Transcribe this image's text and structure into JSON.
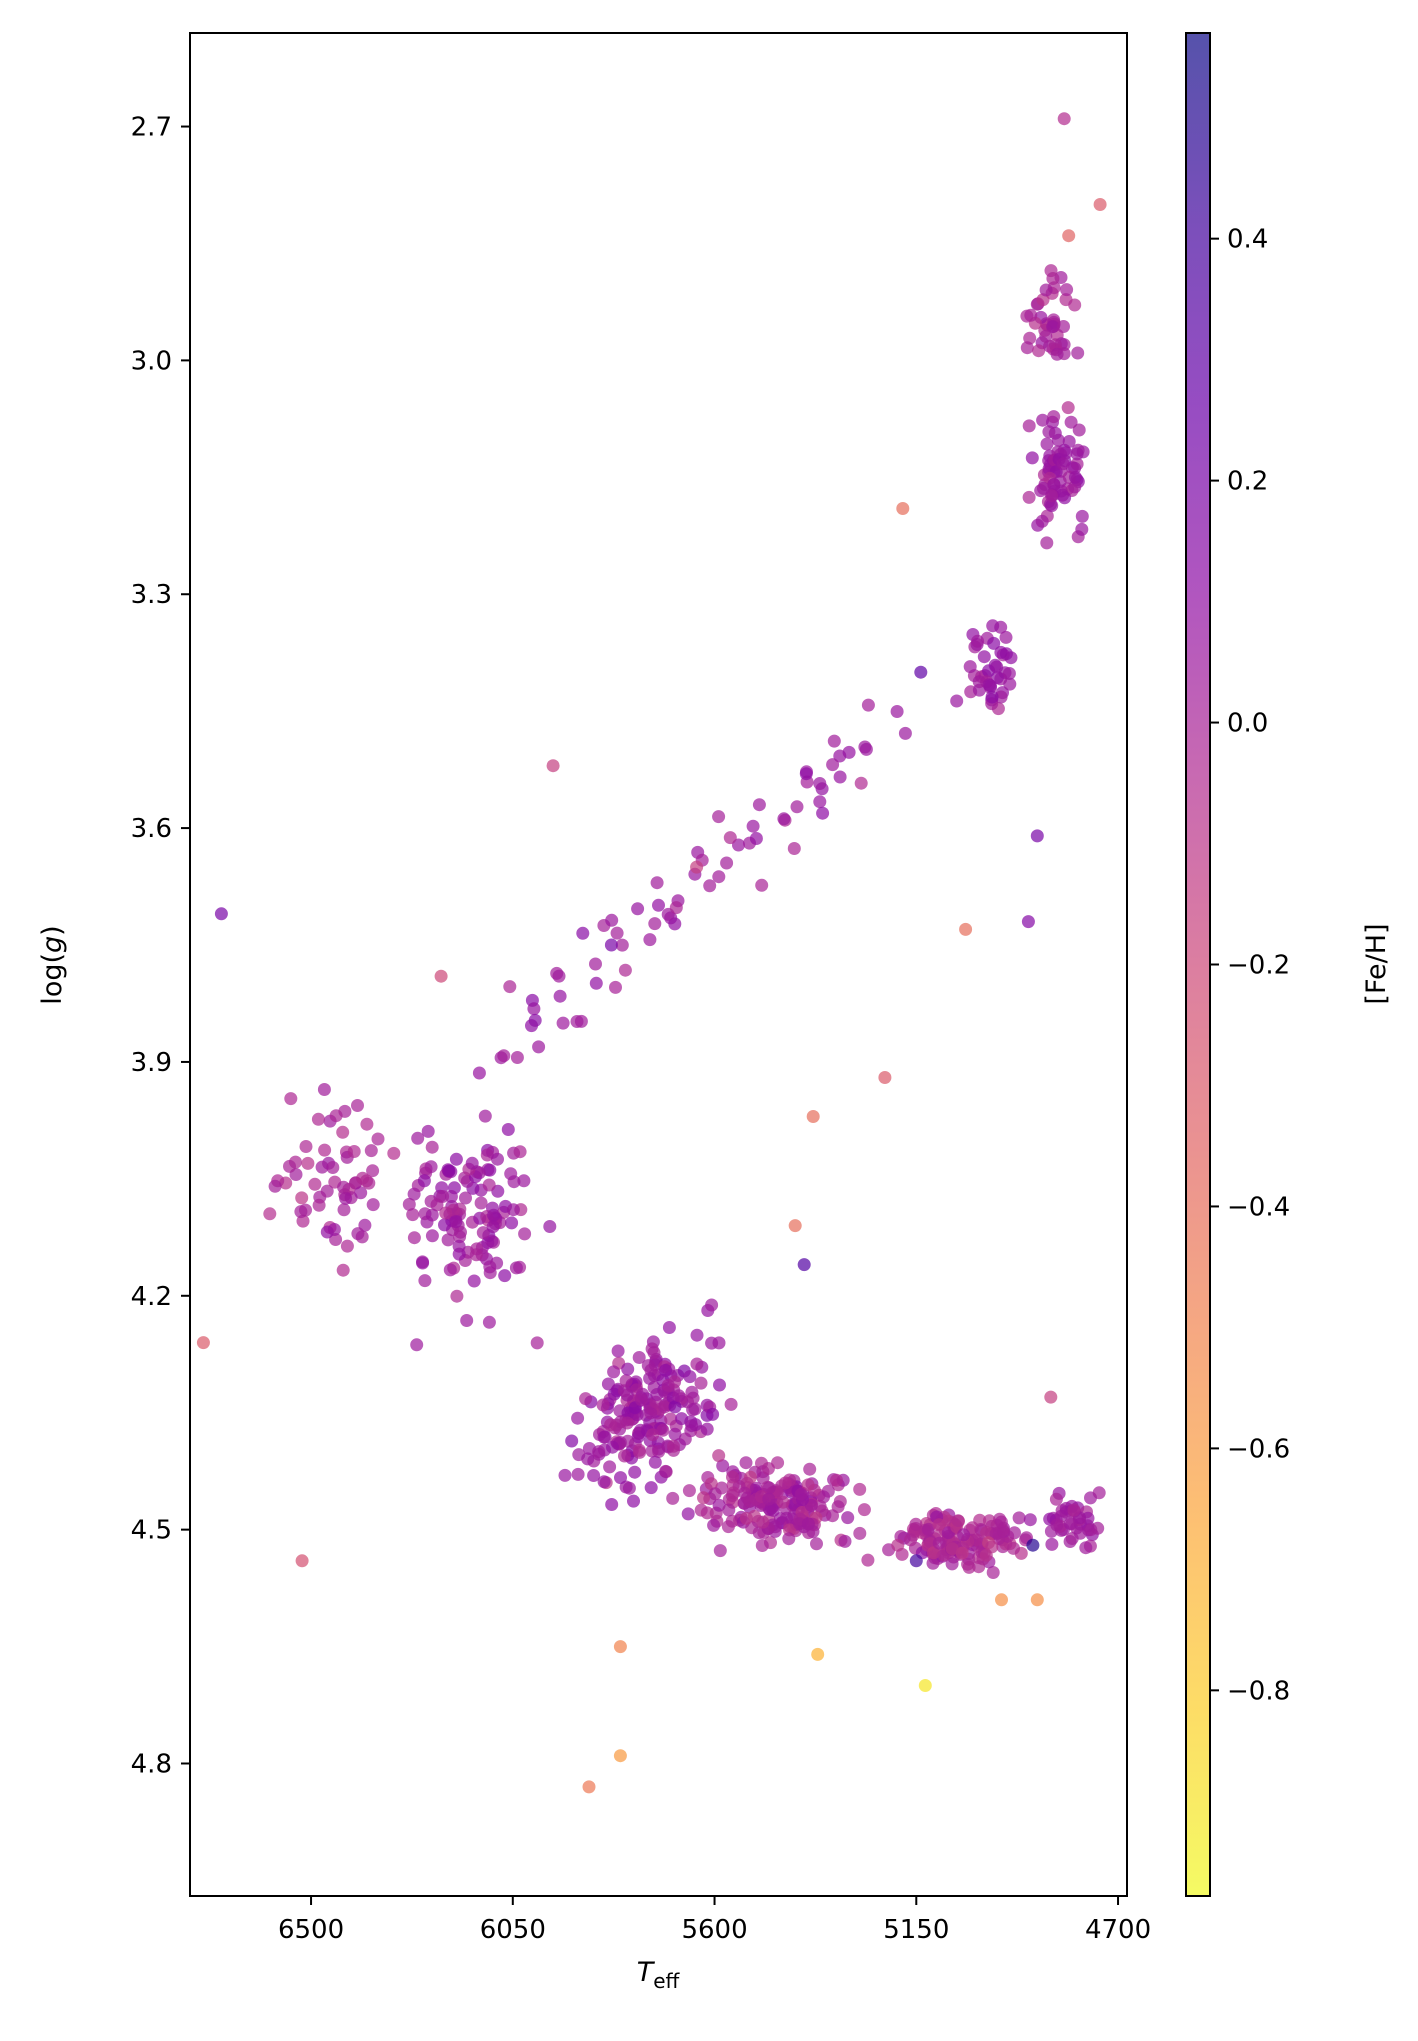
{
  "chart_data": {
    "type": "scatter",
    "title": "",
    "xlabel": "T",
    "xlabel_sub": "eff",
    "ylabel_pre": "log(",
    "ylabel_var": "g",
    "ylabel_post": ")",
    "colorbar_label": "[Fe/H]",
    "colormap": "plasma",
    "x_inverted": true,
    "y_inverted": true,
    "xlim": [
      6770,
      4680
    ],
    "ylim": [
      2.58,
      4.97
    ],
    "xticks": [
      6500,
      6050,
      5600,
      5150,
      4700
    ],
    "yticks": [
      2.7,
      3.0,
      3.3,
      3.6,
      3.9,
      4.2,
      4.5,
      4.8
    ],
    "color_range": [
      -0.97,
      0.57
    ],
    "colorbar_ticks": [
      0.4,
      0.2,
      0.0,
      -0.2,
      -0.4,
      -0.6,
      -0.8
    ],
    "grid": false,
    "marker_alpha": 0.7,
    "highlighted_points": [
      {
        "x": 4820,
        "y": 2.69,
        "c": -0.05
      },
      {
        "x": 4740,
        "y": 2.8,
        "c": -0.3
      },
      {
        "x": 4810,
        "y": 2.84,
        "c": -0.35
      },
      {
        "x": 5960,
        "y": 3.52,
        "c": -0.15
      },
      {
        "x": 6700,
        "y": 3.71,
        "c": 0.2
      },
      {
        "x": 6740,
        "y": 4.26,
        "c": -0.3
      },
      {
        "x": 6520,
        "y": 4.54,
        "c": -0.25
      },
      {
        "x": 5880,
        "y": 4.83,
        "c": -0.45
      },
      {
        "x": 5810,
        "y": 4.79,
        "c": -0.6
      },
      {
        "x": 5810,
        "y": 4.65,
        "c": -0.5
      },
      {
        "x": 5370,
        "y": 4.66,
        "c": -0.7
      },
      {
        "x": 5130,
        "y": 4.7,
        "c": -0.9
      },
      {
        "x": 4890,
        "y": 4.52,
        "c": 0.5
      },
      {
        "x": 5500,
        "y": 3.57,
        "c": 0.05
      },
      {
        "x": 5640,
        "y": 3.65,
        "c": -0.15
      },
      {
        "x": 4900,
        "y": 3.72,
        "c": 0.15
      },
      {
        "x": 5040,
        "y": 3.73,
        "c": -0.4
      },
      {
        "x": 5830,
        "y": 3.75,
        "c": 0.2
      },
      {
        "x": 6210,
        "y": 3.79,
        "c": -0.2
      },
      {
        "x": 4880,
        "y": 3.61,
        "c": 0.2
      },
      {
        "x": 5220,
        "y": 3.92,
        "c": -0.3
      },
      {
        "x": 5420,
        "y": 4.11,
        "c": -0.4
      },
      {
        "x": 5400,
        "y": 4.16,
        "c": 0.35
      },
      {
        "x": 5380,
        "y": 3.97,
        "c": -0.4
      },
      {
        "x": 4850,
        "y": 4.33,
        "c": -0.15
      },
      {
        "x": 4960,
        "y": 4.59,
        "c": -0.55
      },
      {
        "x": 4880,
        "y": 4.59,
        "c": -0.55
      },
      {
        "x": 5150,
        "y": 4.54,
        "c": 0.4
      },
      {
        "x": 5180,
        "y": 3.19,
        "c": -0.4
      },
      {
        "x": 5140,
        "y": 3.4,
        "c": 0.3
      }
    ]
  }
}
